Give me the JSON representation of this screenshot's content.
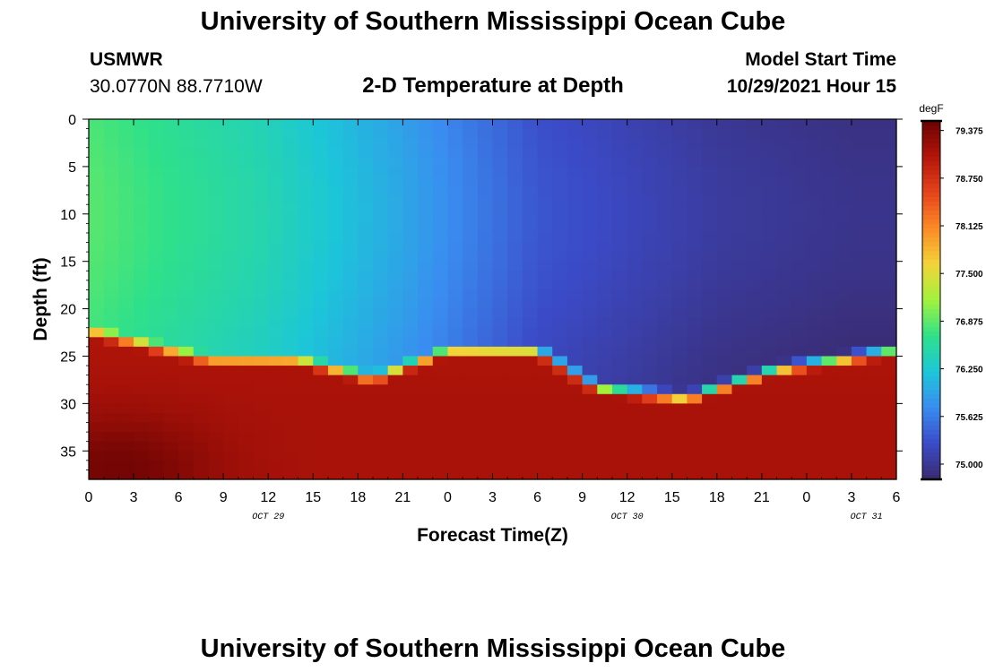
{
  "header": {
    "title": "University of Southern Mississippi Ocean Cube",
    "station": "USMWR",
    "coordinates": "30.0770N  88.7710W",
    "subtitle": "2-D Temperature at Depth",
    "model_label": "Model Start Time",
    "model_time": "10/29/2021 Hour 15"
  },
  "footer": {
    "title": "University of Southern Mississippi Ocean Cube"
  },
  "chart_data": {
    "type": "heatmap",
    "title": "2-D Temperature at Depth",
    "xlabel": "Forecast Time(Z)",
    "ylabel": "Depth (ft)",
    "x_tick_labels": [
      "0",
      "3",
      "6",
      "9",
      "12",
      "15",
      "18",
      "21",
      "0",
      "3",
      "6",
      "9",
      "12",
      "15",
      "18",
      "21",
      "0",
      "3",
      "6"
    ],
    "x_range_hours": [
      0,
      54
    ],
    "date_labels": [
      {
        "text": "OCT 29",
        "hour": 12
      },
      {
        "text": "OCT 30",
        "hour": 36
      },
      {
        "text": "OCT 31",
        "hour": 52
      }
    ],
    "y_tick_labels": [
      "0",
      "5",
      "10",
      "15",
      "20",
      "25",
      "30",
      "35"
    ],
    "y_range_ft": [
      0,
      38
    ],
    "colorbar": {
      "unit": "degF",
      "min": 74.8,
      "max": 79.5,
      "tick_values": [
        75.0,
        75.625,
        76.25,
        76.875,
        77.5,
        78.125,
        78.75,
        79.375
      ],
      "tick_labels": [
        "75.000",
        "75.625",
        "76.250",
        "76.875",
        "77.500",
        "78.125",
        "78.750",
        "79.375"
      ],
      "colors": [
        "#3a2a6e",
        "#3b4bc8",
        "#3a8cf0",
        "#1cc6d8",
        "#2fe08a",
        "#a2f23c",
        "#f2d43a",
        "#fb8a26",
        "#e5431b",
        "#b3150a",
        "#6a0303"
      ]
    },
    "surface_layer_temperature_degF": [
      {
        "hour": 0,
        "value": 76.8
      },
      {
        "hour": 12,
        "value": 76.4
      },
      {
        "hour": 21,
        "value": 75.9
      },
      {
        "hour": 30,
        "value": 75.3
      },
      {
        "hour": 42,
        "value": 75.0
      },
      {
        "hour": 51,
        "value": 74.9
      }
    ],
    "thermocline_depth_ft": [
      {
        "hour": 0,
        "value": 21.5
      },
      {
        "hour": 8,
        "value": 24.5
      },
      {
        "hour": 14,
        "value": 24.5
      },
      {
        "hour": 19,
        "value": 26.5
      },
      {
        "hour": 24,
        "value": 23.5
      },
      {
        "hour": 30,
        "value": 23.5
      },
      {
        "hour": 34,
        "value": 27.5
      },
      {
        "hour": 40,
        "value": 28.5
      },
      {
        "hour": 46,
        "value": 25.5
      },
      {
        "hour": 54,
        "value": 23.5
      }
    ],
    "bottom_temperature_degF": 79.1,
    "bottom_max": {
      "hour": 2,
      "depth_ft": 37,
      "value": 79.4
    }
  }
}
